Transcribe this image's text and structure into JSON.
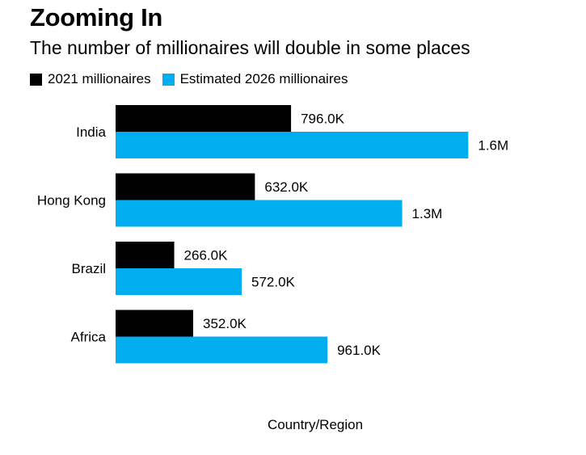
{
  "title": "Zooming In",
  "subtitle": "The number of millionaires will double in some places",
  "legend": [
    {
      "label": "2021 millionaires",
      "color": "#000000"
    },
    {
      "label": "Estimated 2026 millionaires",
      "color": "#00adef"
    }
  ],
  "chart_data": {
    "type": "bar",
    "orientation": "horizontal",
    "title": "Zooming In",
    "subtitle": "The number of millionaires will double in some places",
    "xlabel": "Country/Region",
    "ylabel": "",
    "categories": [
      "India",
      "Hong Kong",
      "Brazil",
      "Africa"
    ],
    "series": [
      {
        "name": "2021 millionaires",
        "color": "#000000",
        "values": [
          796000,
          632000,
          266000,
          352000
        ],
        "labels": [
          "796.0K",
          "632.0K",
          "266.0K",
          "352.0K"
        ]
      },
      {
        "name": "Estimated 2026 millionaires",
        "color": "#00adef",
        "values": [
          1600000,
          1300000,
          572000,
          961000
        ],
        "labels": [
          "1.6M",
          "1.3M",
          "572.0K",
          "961.0K"
        ]
      }
    ],
    "xlim": [
      0,
      1650000
    ],
    "grid": false,
    "legend_position": "top-left"
  }
}
